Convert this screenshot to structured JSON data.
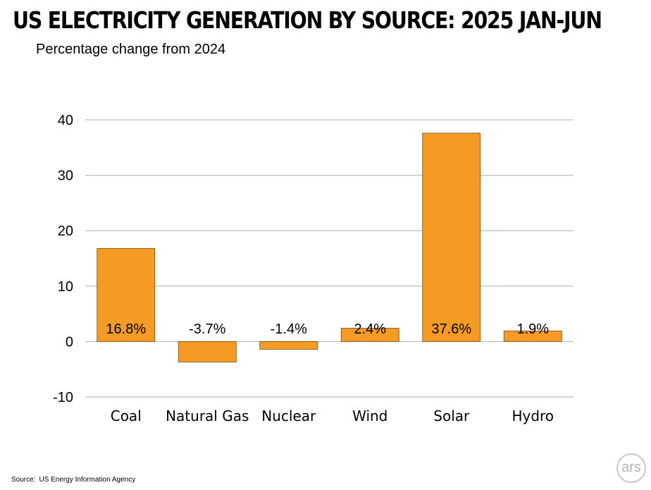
{
  "title": "US ELECTRICITY GENERATION BY SOURCE: 2025 JAN-JUN",
  "subtitle": "Percentage change from 2024",
  "source": {
    "label": "Source:",
    "text": "US Energy Information Agency"
  },
  "logo_text": "ars",
  "colors": {
    "bar": "#f59a23",
    "bar_stroke": "#7a4a0c",
    "grid": "#b0b0b0"
  },
  "chart_data": {
    "type": "bar",
    "title": "US ELECTRICITY GENERATION BY SOURCE: 2025 JAN-JUN",
    "subtitle": "Percentage change from 2024",
    "categories": [
      "Coal",
      "Natural Gas",
      "Nuclear",
      "Wind",
      "Solar",
      "Hydro"
    ],
    "values": [
      16.8,
      -3.7,
      -1.4,
      2.4,
      37.6,
      1.9
    ],
    "data_labels": [
      "16.8%",
      "-3.7%",
      "-1.4%",
      "2.4%",
      "37.6%",
      "1.9%"
    ],
    "y_ticks": [
      -10,
      0,
      10,
      20,
      30,
      40
    ],
    "ylim": [
      -10,
      40
    ],
    "xlabel": "",
    "ylabel": "",
    "grid": true
  }
}
